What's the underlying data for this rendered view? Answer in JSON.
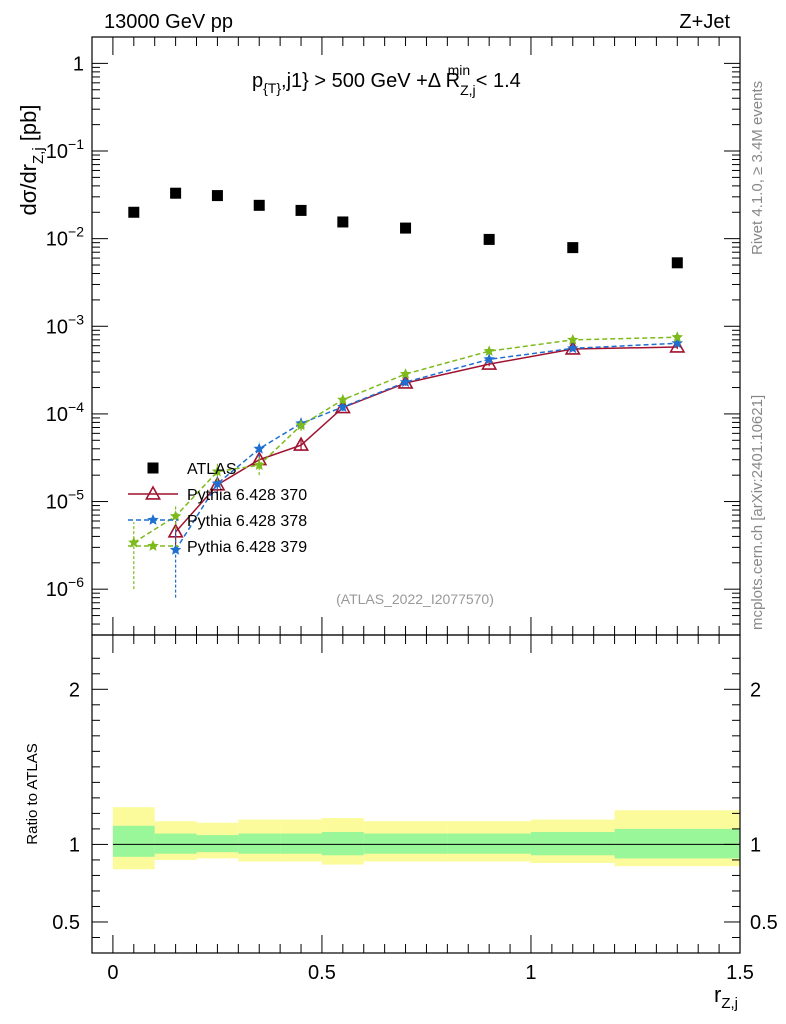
{
  "header": {
    "left_label": "13000 GeV pp",
    "right_label": "Z+Jet",
    "cut_label_main": "p",
    "cut_label_sub": "{T}",
    "cut_label_rest": ",j1} > 500 GeV +Δ R",
    "cut_label_sub2": "Z,j",
    "cut_label_sup2": "min",
    "cut_label_end": " < 1.4",
    "analysis_id": "(ATLAS_2022_I2077570)",
    "side_label_top": "Rivet 4.1.0, ≥ 3.4M events",
    "side_label_bottom": "mcplots.cern.ch [arXiv:2401.10621]"
  },
  "chart_data": [
    {
      "type": "scatter",
      "panel": "main",
      "yscale": "log",
      "ylim": [
        3e-07,
        2
      ],
      "xlim": [
        -0.05,
        1.5
      ],
      "ylabel_main": "dσ/dr",
      "ylabel_sub": "Z,j",
      "ylabel_unit": " [pb]",
      "yticks": [
        {
          "value": 1,
          "base": "1",
          "exp": ""
        },
        {
          "value": 0.1,
          "base": "10",
          "exp": "−1"
        },
        {
          "value": 0.01,
          "base": "10",
          "exp": "−2"
        },
        {
          "value": 0.001,
          "base": "10",
          "exp": "−3"
        },
        {
          "value": 0.0001,
          "base": "10",
          "exp": "−4"
        },
        {
          "value": 1e-05,
          "base": "10",
          "exp": "−5"
        },
        {
          "value": 1e-06,
          "base": "10",
          "exp": "−6"
        }
      ],
      "series": [
        {
          "name": "ATLAS",
          "style": "data",
          "color": "#000000",
          "x": [
            0.05,
            0.15,
            0.25,
            0.35,
            0.45,
            0.55,
            0.7,
            0.9,
            1.1,
            1.35
          ],
          "y": [
            0.02,
            0.033,
            0.031,
            0.024,
            0.021,
            0.0155,
            0.0132,
            0.0098,
            0.0079,
            0.0053
          ]
        },
        {
          "name": "Pythia 6.428 370",
          "style": "solid-triangle",
          "color": "#a1122f",
          "x": [
            0.15,
            0.25,
            0.35,
            0.45,
            0.55,
            0.7,
            0.9,
            1.1,
            1.35
          ],
          "y": [
            4.5e-06,
            1.55e-05,
            3e-05,
            4.4e-05,
            0.000118,
            0.000225,
            0.00037,
            0.00055,
            0.00058
          ],
          "err": [
            1.5e-06,
            3e-06,
            4e-06,
            6e-06,
            1e-05,
            1.5e-05,
            2e-05,
            3e-05,
            3e-05
          ]
        },
        {
          "name": "Pythia 6.428 378",
          "style": "dashed-star",
          "color": "#1f6fd1",
          "x": [
            0.15,
            0.25,
            0.35,
            0.45,
            0.55,
            0.7,
            0.9,
            1.1,
            1.35
          ],
          "y": [
            2.8e-06,
            1.6e-05,
            4e-05,
            7.8e-05,
            0.00012,
            0.00023,
            0.00042,
            0.00056,
            0.00064
          ],
          "err": [
            2e-06,
            4e-06,
            8e-06,
            1.2e-05,
            1.2e-05,
            1.5e-05,
            2e-05,
            3e-05,
            3e-05
          ]
        },
        {
          "name": "Pythia 6.428 379",
          "style": "dashed-star",
          "color": "#7dba1c",
          "x": [
            0.05,
            0.15,
            0.25,
            0.35,
            0.45,
            0.55,
            0.7,
            0.9,
            1.1,
            1.35
          ],
          "y": [
            3.4e-06,
            6.8e-06,
            2.2e-05,
            2.6e-05,
            7.4e-05,
            0.000145,
            0.000285,
            0.00052,
            0.0007,
            0.00075
          ],
          "err": [
            2.4e-06,
            2e-06,
            5e-06,
            6e-06,
            1e-05,
            1.5e-05,
            2e-05,
            3e-05,
            3e-05,
            3e-05
          ]
        }
      ]
    },
    {
      "type": "area",
      "panel": "ratio",
      "ylim": [
        0.3,
        2.35
      ],
      "ylabel": "Ratio to ATLAS",
      "xlabel_main": "r",
      "xlabel_sub": "Z,j",
      "yticks": [
        0.5,
        1,
        2
      ],
      "xticks": [
        {
          "value": 0,
          "label": "0"
        },
        {
          "value": 0.5,
          "label": "0.5"
        },
        {
          "value": 1,
          "label": "1"
        },
        {
          "value": 1.5,
          "label": "1.5"
        }
      ],
      "bins": [
        {
          "lo": 0.0,
          "hi": 0.1,
          "inner": [
            0.92,
            1.12
          ],
          "outer": [
            0.84,
            1.24
          ]
        },
        {
          "lo": 0.1,
          "hi": 0.2,
          "inner": [
            0.94,
            1.07
          ],
          "outer": [
            0.9,
            1.15
          ]
        },
        {
          "lo": 0.2,
          "hi": 0.3,
          "inner": [
            0.95,
            1.06
          ],
          "outer": [
            0.91,
            1.14
          ]
        },
        {
          "lo": 0.3,
          "hi": 0.4,
          "inner": [
            0.94,
            1.07
          ],
          "outer": [
            0.89,
            1.16
          ]
        },
        {
          "lo": 0.4,
          "hi": 0.5,
          "inner": [
            0.94,
            1.07
          ],
          "outer": [
            0.89,
            1.16
          ]
        },
        {
          "lo": 0.5,
          "hi": 0.6,
          "inner": [
            0.93,
            1.08
          ],
          "outer": [
            0.87,
            1.17
          ]
        },
        {
          "lo": 0.6,
          "hi": 0.8,
          "inner": [
            0.94,
            1.07
          ],
          "outer": [
            0.89,
            1.15
          ]
        },
        {
          "lo": 0.8,
          "hi": 1.0,
          "inner": [
            0.94,
            1.07
          ],
          "outer": [
            0.89,
            1.15
          ]
        },
        {
          "lo": 1.0,
          "hi": 1.2,
          "inner": [
            0.93,
            1.08
          ],
          "outer": [
            0.88,
            1.16
          ]
        },
        {
          "lo": 1.2,
          "hi": 1.5,
          "inner": [
            0.91,
            1.1
          ],
          "outer": [
            0.86,
            1.22
          ]
        }
      ],
      "inner_color": "#99f799",
      "outer_color": "#fbfb9b"
    }
  ]
}
